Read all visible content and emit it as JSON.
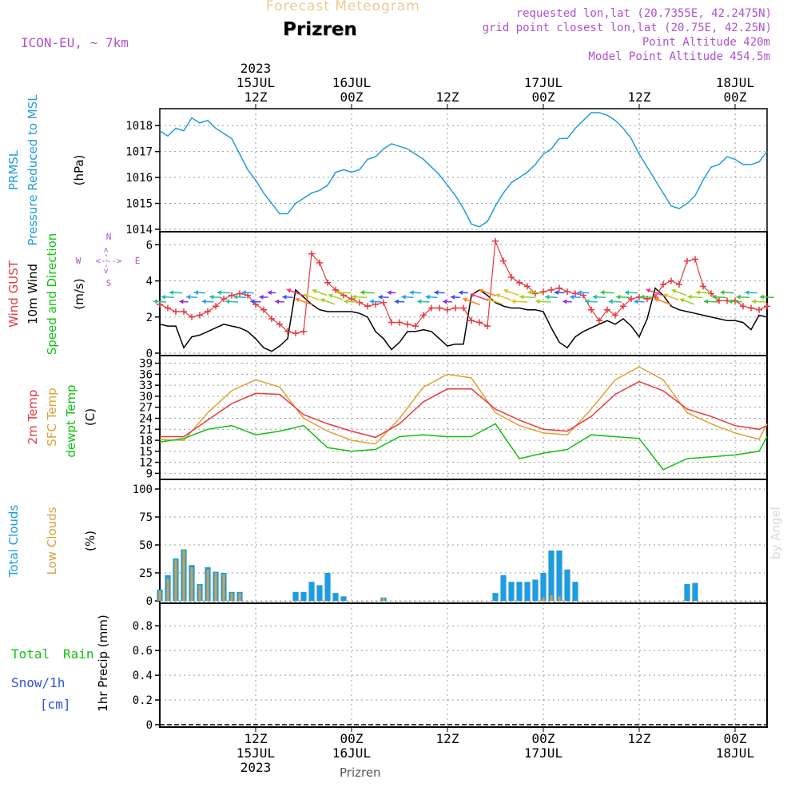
{
  "header": {
    "product": "Forecast Meteogram",
    "location": "Prizren",
    "model": "ICON-EU, ~ 7km",
    "requested": "requested lon,lat (20.7355E, 42.2475N)",
    "gridpoint": "grid point closest lon,lat (20.75E, 42.25N)",
    "point_altitude": "Point Altitude 420m",
    "model_altitude": "Model Point Altitude 454.5m",
    "footer_location": "Prizren",
    "credit": "by Angel"
  },
  "time_axis": {
    "top_labels": [
      {
        "hour": 12,
        "lines": [
          "2023",
          "15JUL",
          "12Z"
        ]
      },
      {
        "hour": 24,
        "lines": [
          "16JUL",
          "00Z"
        ]
      },
      {
        "hour": 36,
        "lines": [
          "12Z"
        ]
      },
      {
        "hour": 48,
        "lines": [
          "17JUL",
          "00Z"
        ]
      },
      {
        "hour": 60,
        "lines": [
          "12Z"
        ]
      },
      {
        "hour": 72,
        "lines": [
          "18JUL",
          "00Z"
        ]
      }
    ],
    "bottom_labels": [
      {
        "hour": 12,
        "lines": [
          "12Z",
          "15JUL",
          "2023"
        ]
      },
      {
        "hour": 24,
        "lines": [
          "00Z",
          "16JUL"
        ]
      },
      {
        "hour": 36,
        "lines": [
          "12Z"
        ]
      },
      {
        "hour": 48,
        "lines": [
          "00Z",
          "17JUL"
        ]
      },
      {
        "hour": 60,
        "lines": [
          "12Z"
        ]
      },
      {
        "hour": 72,
        "lines": [
          "00Z",
          "18JUL"
        ]
      }
    ]
  },
  "panels": {
    "pressure": {
      "labels": [
        "PRMSL",
        "Pressure Reduced to MSL",
        "(hPa)"
      ],
      "ticks": [
        "1014",
        "1015",
        "1016",
        "1017",
        "1018"
      ]
    },
    "wind": {
      "labels": [
        "Wind GUST",
        "10m Wind",
        "Speed and Direction",
        "(m/s)"
      ],
      "ticks": [
        "0",
        "2",
        "4",
        "6"
      ],
      "compass": [
        "N",
        "W",
        "E",
        "S",
        "<--->"
      ]
    },
    "temperature": {
      "labels": [
        "2m Temp",
        "SFC Temp",
        "dewpt Temp",
        "(C)"
      ],
      "ticks": [
        "9",
        "12",
        "15",
        "18",
        "21",
        "24",
        "27",
        "30",
        "33",
        "36",
        "39"
      ]
    },
    "clouds": {
      "labels": [
        "Total Clouds",
        "Low Clouds",
        "(%)"
      ],
      "ticks": [
        "0",
        "25",
        "50",
        "75",
        "100"
      ]
    },
    "precip": {
      "labels": [
        "Total",
        "Rain",
        "Snow/1h",
        "[cm]",
        "1hr Precip (mm)"
      ],
      "ticks": [
        "0",
        "0.2",
        "0.4",
        "0.6",
        "0.8"
      ]
    }
  },
  "colors": {
    "pressure": "#1f9be0",
    "gust": "#e8383d",
    "wind10m": "#000000",
    "temp2m": "#e8383d",
    "sfctemp": "#e0a030",
    "dewpt": "#10c010",
    "totalclouds": "#1f9be0",
    "lowclouds": "#d8a040",
    "label_purple": "#b050d0"
  },
  "chart_data": [
    {
      "type": "line",
      "title": "PRMSL Pressure Reduced to MSL",
      "ylabel": "(hPa)",
      "ylim": [
        1014,
        1018.5
      ],
      "x_unit": "hours from 15JUL 00Z",
      "series": [
        {
          "name": "PRMSL",
          "x": [
            0,
            1,
            2,
            3,
            4,
            5,
            6,
            7,
            8,
            9,
            10,
            11,
            12,
            13,
            14,
            15,
            16,
            17,
            18,
            19,
            20,
            21,
            22,
            23,
            24,
            25,
            26,
            27,
            28,
            29,
            30,
            31,
            32,
            33,
            34,
            35,
            36,
            37,
            38,
            39,
            40,
            41,
            42,
            43,
            44,
            45,
            46,
            47,
            48,
            49,
            50,
            51,
            52,
            53,
            54,
            55,
            56,
            57,
            58,
            59,
            60,
            61,
            62,
            63,
            64,
            65,
            66,
            67,
            68,
            69,
            70,
            71,
            72,
            73,
            74,
            75,
            76
          ],
          "values": [
            1017.8,
            1017.6,
            1017.9,
            1017.8,
            1018.3,
            1018.1,
            1018.2,
            1017.9,
            1017.7,
            1017.5,
            1016.9,
            1016.3,
            1015.9,
            1015.4,
            1015.0,
            1014.6,
            1014.6,
            1015.0,
            1015.2,
            1015.4,
            1015.5,
            1015.7,
            1016.2,
            1016.3,
            1016.2,
            1016.3,
            1016.7,
            1016.8,
            1017.1,
            1017.3,
            1017.2,
            1017.1,
            1016.9,
            1016.7,
            1016.4,
            1016.1,
            1015.7,
            1015.3,
            1014.8,
            1014.2,
            1014.1,
            1014.3,
            1014.9,
            1015.4,
            1015.8,
            1016.0,
            1016.2,
            1016.5,
            1016.9,
            1017.1,
            1017.5,
            1017.5,
            1017.9,
            1018.2,
            1018.5,
            1018.5,
            1018.4,
            1018.2,
            1017.9,
            1017.5,
            1016.9,
            1016.4,
            1015.9,
            1015.4,
            1014.9,
            1014.8,
            1015.0,
            1015.3,
            1015.9,
            1016.4,
            1016.5,
            1016.8,
            1016.7,
            1016.5,
            1016.5,
            1016.6,
            1017.0
          ]
        }
      ]
    },
    {
      "type": "line",
      "title": "Wind GUST / 10m Wind Speed and Direction",
      "ylabel": "(m/s)",
      "ylim": [
        0,
        6.5
      ],
      "x_unit": "hours from 15JUL 00Z",
      "series": [
        {
          "name": "Wind GUST",
          "x": [
            0,
            1,
            2,
            3,
            4,
            5,
            6,
            7,
            8,
            9,
            10,
            11,
            12,
            13,
            14,
            15,
            16,
            17,
            18,
            19,
            20,
            21,
            22,
            23,
            24,
            25,
            26,
            27,
            28,
            29,
            30,
            31,
            32,
            33,
            34,
            35,
            36,
            37,
            38,
            39,
            40,
            41,
            42,
            43,
            44,
            45,
            46,
            47,
            48,
            49,
            50,
            51,
            52,
            53,
            54,
            55,
            56,
            57,
            58,
            59,
            60,
            61,
            62,
            63,
            64,
            65,
            66,
            67,
            68,
            69,
            70,
            71,
            72,
            73,
            74,
            75,
            76
          ],
          "values": [
            2.7,
            2.5,
            2.3,
            2.3,
            2.0,
            2.1,
            2.3,
            2.6,
            3.0,
            3.2,
            3.3,
            3.2,
            2.7,
            2.4,
            1.9,
            1.6,
            1.2,
            1.1,
            1.2,
            5.5,
            5.0,
            3.9,
            3.5,
            3.2,
            3.0,
            2.8,
            2.6,
            2.7,
            2.8,
            1.7,
            1.7,
            1.6,
            1.5,
            2.1,
            2.5,
            2.5,
            2.4,
            2.5,
            2.5,
            1.8,
            1.7,
            1.5,
            6.2,
            5.1,
            4.2,
            3.9,
            3.7,
            3.3,
            3.4,
            3.5,
            3.6,
            3.4,
            3.3,
            3.2,
            2.4,
            1.8,
            2.4,
            2.1,
            2.6,
            3.0,
            3.1,
            3.0,
            3.1,
            3.8,
            4.0,
            3.8,
            5.1,
            5.2,
            3.7,
            3.3,
            2.9,
            2.9,
            2.9,
            2.6,
            2.5,
            2.4,
            2.6
          ]
        },
        {
          "name": "10m Wind",
          "x": [
            0,
            1,
            2,
            3,
            4,
            5,
            6,
            7,
            8,
            9,
            10,
            11,
            12,
            13,
            14,
            15,
            16,
            17,
            18,
            19,
            20,
            21,
            22,
            23,
            24,
            25,
            26,
            27,
            28,
            29,
            30,
            31,
            32,
            33,
            34,
            35,
            36,
            37,
            38,
            39,
            40,
            41,
            42,
            43,
            44,
            45,
            46,
            47,
            48,
            49,
            50,
            51,
            52,
            53,
            54,
            55,
            56,
            57,
            58,
            59,
            60,
            61,
            62,
            63,
            64,
            65,
            66,
            67,
            68,
            69,
            70,
            71,
            72,
            73,
            74,
            75,
            76
          ],
          "values": [
            1.6,
            1.5,
            1.5,
            0.3,
            0.9,
            1.0,
            1.2,
            1.4,
            1.6,
            1.5,
            1.4,
            1.2,
            0.8,
            0.3,
            0.1,
            0.4,
            0.8,
            3.5,
            3.1,
            2.7,
            2.4,
            2.3,
            2.3,
            2.3,
            2.3,
            2.2,
            2.0,
            1.2,
            0.8,
            0.2,
            0.6,
            1.2,
            1.2,
            1.3,
            1.2,
            0.8,
            0.4,
            0.5,
            0.5,
            3.2,
            3.5,
            3.2,
            2.8,
            2.6,
            2.5,
            2.5,
            2.4,
            2.4,
            2.3,
            1.4,
            0.6,
            0.3,
            0.9,
            1.2,
            1.4,
            1.6,
            1.8,
            1.6,
            1.9,
            1.5,
            0.9,
            1.9,
            3.6,
            3.2,
            2.6,
            2.4,
            2.3,
            2.2,
            2.1,
            2.0,
            1.9,
            1.8,
            1.8,
            1.7,
            1.3,
            2.1,
            2.0
          ]
        }
      ]
    },
    {
      "type": "line",
      "title": "2m Temp / SFC Temp / dewpt Temp",
      "ylabel": "(C)",
      "ylim": [
        8,
        40
      ],
      "x_unit": "hours from 15JUL 00Z",
      "series": [
        {
          "name": "2m Temp",
          "x": [
            0,
            3,
            6,
            9,
            12,
            15,
            18,
            21,
            24,
            27,
            30,
            33,
            36,
            39,
            42,
            45,
            48,
            51,
            54,
            57,
            60,
            63,
            66,
            69,
            72,
            75,
            76
          ],
          "values": [
            19.0,
            19.0,
            23.5,
            28.0,
            30.8,
            30.5,
            25.0,
            22.5,
            20.5,
            18.8,
            22.5,
            28.5,
            32.0,
            32.0,
            26.5,
            23.5,
            21.0,
            20.5,
            24.5,
            30.5,
            34.0,
            31.5,
            26.5,
            24.5,
            22.0,
            21.0,
            22.0
          ]
        },
        {
          "name": "SFC Temp",
          "x": [
            0,
            3,
            6,
            9,
            12,
            15,
            18,
            21,
            24,
            27,
            30,
            33,
            36,
            39,
            42,
            45,
            48,
            51,
            54,
            57,
            60,
            63,
            66,
            69,
            72,
            75,
            76
          ],
          "values": [
            18.2,
            18.0,
            25.5,
            31.5,
            34.5,
            32.5,
            24.0,
            20.5,
            18.0,
            17.0,
            24.0,
            32.5,
            36.0,
            35.0,
            25.5,
            22.0,
            20.0,
            19.5,
            26.5,
            34.5,
            38.0,
            34.5,
            25.5,
            22.5,
            20.0,
            18.3,
            22.5
          ]
        },
        {
          "name": "dewpt Temp",
          "x": [
            0,
            3,
            6,
            9,
            12,
            15,
            18,
            21,
            24,
            27,
            30,
            33,
            36,
            39,
            42,
            45,
            48,
            51,
            54,
            57,
            60,
            63,
            66,
            69,
            72,
            75,
            76
          ],
          "values": [
            17.5,
            18.5,
            21.0,
            22.0,
            19.5,
            20.5,
            22.0,
            16.0,
            15.0,
            15.5,
            19.0,
            19.5,
            19.0,
            19.0,
            22.5,
            13.0,
            14.5,
            15.5,
            19.5,
            19.0,
            18.5,
            10.0,
            13.0,
            13.5,
            14.0,
            15.0,
            19.0
          ]
        }
      ]
    },
    {
      "type": "bar",
      "title": "Total Clouds / Low Clouds",
      "ylabel": "(%)",
      "ylim": [
        0,
        105
      ],
      "x_unit": "hours from 15JUL 00Z",
      "series": [
        {
          "name": "Total Clouds",
          "x": [
            0,
            1,
            2,
            3,
            4,
            5,
            6,
            7,
            8,
            9,
            10,
            11,
            17,
            18,
            19,
            20,
            21,
            22,
            23,
            28,
            42,
            43,
            44,
            45,
            46,
            47,
            48,
            49,
            50,
            51,
            52,
            53,
            66,
            67
          ],
          "values": [
            10,
            23,
            38,
            46,
            32,
            15,
            30,
            26,
            25,
            8,
            8,
            0,
            8,
            8,
            17,
            14,
            25,
            7,
            4,
            3,
            7,
            23,
            17,
            17,
            17,
            19,
            25,
            45,
            45,
            28,
            17,
            0,
            15,
            16
          ]
        },
        {
          "name": "Low Clouds",
          "x": [
            0,
            1,
            2,
            3,
            4,
            5,
            6,
            7,
            8,
            9,
            10,
            28,
            48,
            49,
            50
          ],
          "values": [
            9,
            20,
            37,
            45,
            30,
            14,
            28,
            25,
            24,
            7,
            7,
            3,
            3,
            5,
            4
          ]
        }
      ]
    },
    {
      "type": "line",
      "title": "1hr Precip (mm)",
      "ylabel": "1hr Precip (mm)",
      "ylim": [
        0,
        0.95
      ],
      "x_unit": "hours from 15JUL 00Z",
      "series": [
        {
          "name": "Total Rain",
          "x": [
            0,
            76
          ],
          "values": [
            0,
            0
          ]
        }
      ]
    }
  ]
}
